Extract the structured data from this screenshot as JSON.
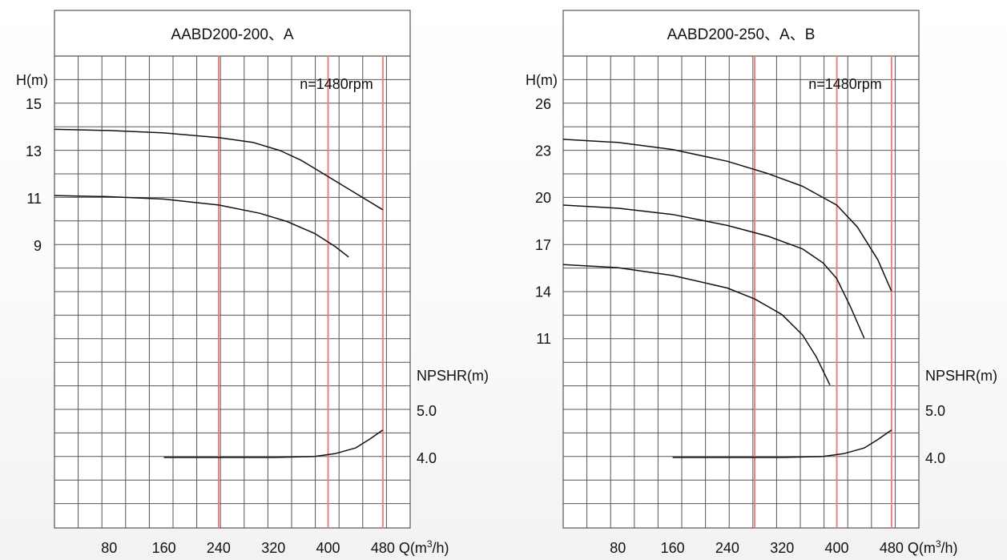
{
  "charts_meta": {
    "grid_color": "#555555",
    "highlight_color": "#e8837c",
    "curve_color": "#111111"
  },
  "chart_data": [
    {
      "type": "line",
      "title": "AABD200-200、A",
      "speed_label": "n=1480rpm",
      "ylabel": "H(m)",
      "ylabel2": "NPSHR(m)",
      "xlabel": "Q(m³/h)",
      "xlabel_parts": {
        "base": "Q(m",
        "sup": "3",
        "tail": "/h)"
      },
      "xlim": [
        0,
        520
      ],
      "x_ticks": [
        80,
        160,
        240,
        320,
        400,
        480
      ],
      "h_ticks": [
        9,
        11,
        13,
        15
      ],
      "npsh_ticks": [
        "4.0",
        "5.0"
      ],
      "highlight_x": [
        240,
        400,
        480
      ],
      "series": [
        {
          "x": [
            0,
            80,
            160,
            240,
            290,
            330,
            360,
            400,
            440,
            480
          ],
          "y": [
            13.9,
            13.85,
            13.75,
            13.55,
            13.35,
            13.0,
            12.6,
            11.9,
            11.2,
            10.5
          ]
        },
        {
          "x": [
            0,
            80,
            160,
            240,
            300,
            340,
            380,
            410,
            430
          ],
          "y": [
            11.1,
            11.05,
            10.95,
            10.7,
            10.35,
            10.0,
            9.5,
            8.95,
            8.5
          ]
        }
      ],
      "npsh_series": {
        "x": [
          160,
          240,
          320,
          380,
          410,
          440,
          460,
          480
        ],
        "y": [
          4.0,
          4.0,
          4.0,
          4.02,
          4.08,
          4.2,
          4.38,
          4.58
        ]
      }
    },
    {
      "type": "line",
      "title": "AABD200-250、A、B",
      "speed_label": "n=1480rpm",
      "ylabel": "H(m)",
      "ylabel2": "NPSHR(m)",
      "xlabel": "Q(m³/h)",
      "xlabel_parts": {
        "base": "Q(m",
        "sup": "3",
        "tail": "/h)"
      },
      "xlim": [
        0,
        520
      ],
      "x_ticks": [
        80,
        160,
        240,
        320,
        400,
        480
      ],
      "h_ticks": [
        11,
        14,
        17,
        20,
        23,
        26
      ],
      "npsh_ticks": [
        "4.0",
        "5.0"
      ],
      "highlight_x": [
        280,
        400,
        480
      ],
      "series": [
        {
          "x": [
            0,
            80,
            160,
            240,
            300,
            350,
            400,
            430,
            460,
            480
          ],
          "y": [
            23.7,
            23.5,
            23.05,
            22.3,
            21.5,
            20.7,
            19.5,
            18.1,
            16.0,
            14.0
          ]
        },
        {
          "x": [
            0,
            80,
            160,
            240,
            300,
            350,
            380,
            400,
            420,
            440
          ],
          "y": [
            19.5,
            19.3,
            18.9,
            18.2,
            17.5,
            16.7,
            15.8,
            14.8,
            13.0,
            11.0
          ]
        },
        {
          "x": [
            0,
            80,
            160,
            240,
            280,
            320,
            350,
            370,
            390
          ],
          "y": [
            15.7,
            15.5,
            15.0,
            14.2,
            13.5,
            12.5,
            11.2,
            9.8,
            8.0
          ]
        }
      ],
      "npsh_series": {
        "x": [
          160,
          240,
          320,
          380,
          410,
          440,
          460,
          480
        ],
        "y": [
          4.0,
          4.0,
          4.0,
          4.02,
          4.08,
          4.2,
          4.38,
          4.58
        ]
      }
    }
  ]
}
